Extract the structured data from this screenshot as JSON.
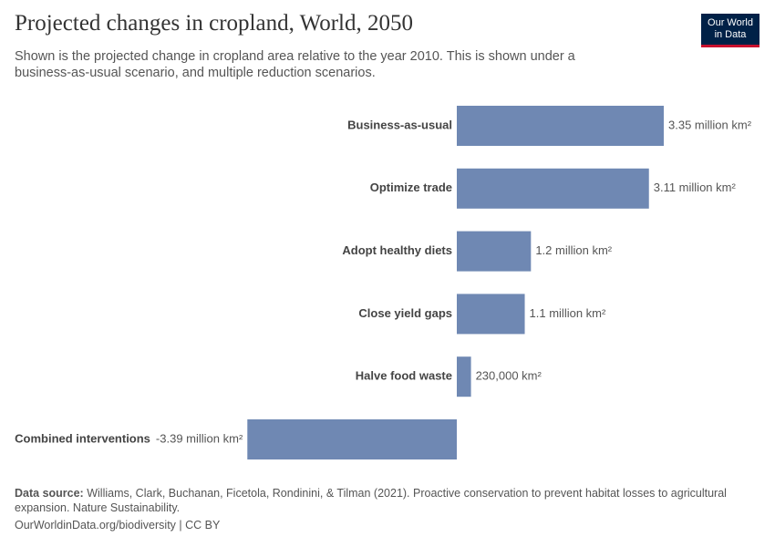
{
  "chart_data": {
    "type": "hbar",
    "title": "Projected changes in cropland, World, 2050",
    "subtitle": "Shown is the projected change in cropland area relative to the year 2010. This is shown under a business-as-usual scenario, and multiple reduction scenarios.",
    "categories": [
      "Business-as-usual",
      "Optimize trade",
      "Adopt healthy diets",
      "Close yield gaps",
      "Halve food waste",
      "Combined interventions"
    ],
    "values": [
      3350000,
      3110000,
      1200000,
      1100000,
      230000,
      -3390000
    ],
    "value_labels": [
      "3.35 million km²",
      "3.11 million km²",
      "1.2 million km²",
      "1.1 million km²",
      "230,000 km²",
      "-3.39 million km²"
    ],
    "color": "#6f88b3",
    "source_label": "Data source:",
    "source": "Williams, Clark, Buchanan, Ficetola, Rondinini, & Tilman (2021). Proactive conservation to prevent habitat losses to agricultural expansion. Nature Sustainability.",
    "footer": "OurWorldinData.org/biodiversity | CC BY",
    "logo": [
      "Our World",
      "in Data"
    ]
  }
}
